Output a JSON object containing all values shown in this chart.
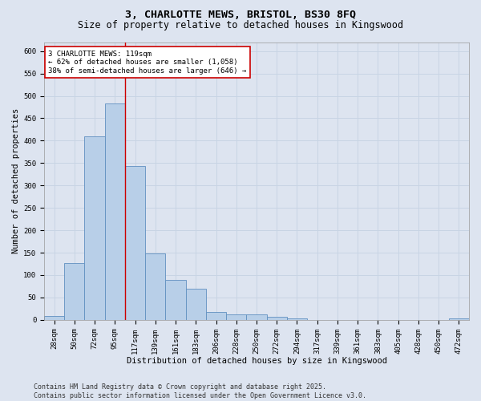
{
  "title_line1": "3, CHARLOTTE MEWS, BRISTOL, BS30 8FQ",
  "title_line2": "Size of property relative to detached houses in Kingswood",
  "xlabel": "Distribution of detached houses by size in Kingswood",
  "ylabel": "Number of detached properties",
  "categories": [
    "28sqm",
    "50sqm",
    "72sqm",
    "95sqm",
    "117sqm",
    "139sqm",
    "161sqm",
    "183sqm",
    "206sqm",
    "228sqm",
    "250sqm",
    "272sqm",
    "294sqm",
    "317sqm",
    "339sqm",
    "361sqm",
    "383sqm",
    "405sqm",
    "428sqm",
    "450sqm",
    "472sqm"
  ],
  "values": [
    8,
    127,
    410,
    483,
    343,
    148,
    90,
    70,
    17,
    13,
    13,
    7,
    3,
    0,
    0,
    0,
    0,
    0,
    0,
    0,
    3
  ],
  "bar_color": "#b8cfe8",
  "bar_edge_color": "#6090c0",
  "grid_color": "#c8d4e4",
  "bg_color": "#dde4f0",
  "vline_color": "#cc0000",
  "vline_x_index": 4,
  "annotation_text": "3 CHARLOTTE MEWS: 119sqm\n← 62% of detached houses are smaller (1,058)\n38% of semi-detached houses are larger (646) →",
  "annotation_box_color": "#ffffff",
  "annotation_box_edge": "#cc0000",
  "ylim": [
    0,
    620
  ],
  "yticks": [
    0,
    50,
    100,
    150,
    200,
    250,
    300,
    350,
    400,
    450,
    500,
    550,
    600
  ],
  "footer": "Contains HM Land Registry data © Crown copyright and database right 2025.\nContains public sector information licensed under the Open Government Licence v3.0.",
  "title_fontsize": 9.5,
  "subtitle_fontsize": 8.5,
  "axis_label_fontsize": 7.5,
  "tick_fontsize": 6.5,
  "annotation_fontsize": 6.5,
  "footer_fontsize": 6.0
}
